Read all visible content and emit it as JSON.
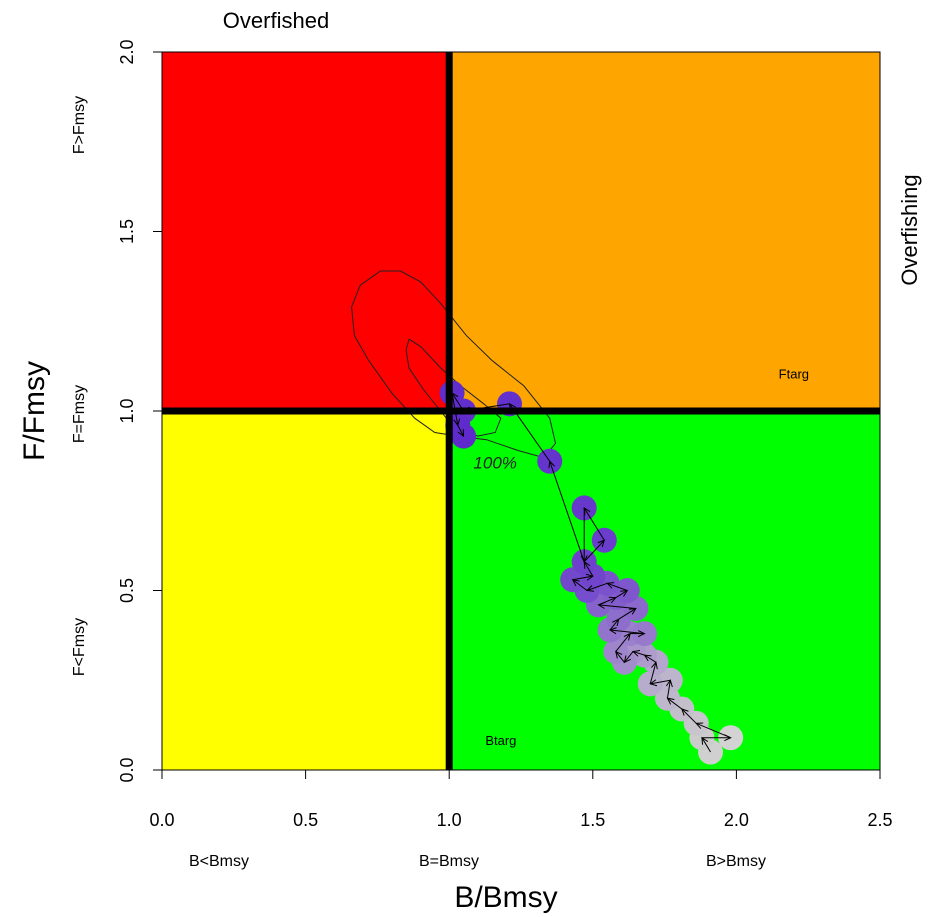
{
  "chart_data": {
    "type": "scatter",
    "title": "",
    "xlabel": "B/Bmsy",
    "ylabel": "F/Fmsy",
    "xlim": [
      0,
      2.5
    ],
    "ylim": [
      0,
      2
    ],
    "x_ticks": [
      "0.0",
      "0.5",
      "1.0",
      "1.5",
      "2.0",
      "2.5"
    ],
    "y_ticks": [
      "0.0",
      "0.5",
      "1.0",
      "1.5",
      "2.0"
    ],
    "grid": false,
    "reference_lines": {
      "x": 1.0,
      "y": 1.0
    },
    "quadrants": [
      {
        "name": "overfished-overfishing",
        "x": [
          0,
          1
        ],
        "y": [
          1,
          2
        ],
        "color": "#ff0000"
      },
      {
        "name": "not-overfished-overfishing",
        "x": [
          1,
          2.5
        ],
        "y": [
          1,
          2
        ],
        "color": "#ffa500"
      },
      {
        "name": "overfished-not-overfishing",
        "x": [
          0,
          1
        ],
        "y": [
          0,
          1
        ],
        "color": "#ffff00"
      },
      {
        "name": "healthy",
        "x": [
          1,
          2.5
        ],
        "y": [
          0,
          1
        ],
        "color": "#00ff00"
      }
    ],
    "margin_labels": {
      "top": "Overfished",
      "right": "Overfishing",
      "x_categories": [
        "B<Bmsy",
        "B=Bmsy",
        "B>Bmsy"
      ],
      "y_categories": [
        "F<Fmsy",
        "F=Fmsy",
        "F>Fmsy"
      ]
    },
    "annotations": [
      {
        "text": "Ftarg",
        "x": 2.2,
        "y": 1.09
      },
      {
        "text": "Btarg",
        "x": 1.18,
        "y": 0.07
      },
      {
        "text": "100%",
        "x": 1.16,
        "y": 0.84
      }
    ],
    "series": [
      {
        "points": [
          {
            "x": 1.91,
            "y": 0.05,
            "color": "#d0d0d0"
          },
          {
            "x": 1.98,
            "y": 0.09,
            "color": "#d3d3d3"
          },
          {
            "x": 1.88,
            "y": 0.09,
            "color": "#cccccc"
          },
          {
            "x": 1.86,
            "y": 0.13,
            "color": "#c8c6cc"
          },
          {
            "x": 1.81,
            "y": 0.17,
            "color": "#c3bfcb"
          },
          {
            "x": 1.76,
            "y": 0.2,
            "color": "#bfb8cc"
          },
          {
            "x": 1.77,
            "y": 0.25,
            "color": "#bdb5cc"
          },
          {
            "x": 1.7,
            "y": 0.24,
            "color": "#b8accc"
          },
          {
            "x": 1.72,
            "y": 0.3,
            "color": "#b4a6cc"
          },
          {
            "x": 1.68,
            "y": 0.32,
            "color": "#ae9ccc"
          },
          {
            "x": 1.64,
            "y": 0.33,
            "color": "#a995cc"
          },
          {
            "x": 1.61,
            "y": 0.3,
            "color": "#a38ccc"
          },
          {
            "x": 1.58,
            "y": 0.33,
            "color": "#9f86cc"
          },
          {
            "x": 1.63,
            "y": 0.38,
            "color": "#9b80cc"
          },
          {
            "x": 1.68,
            "y": 0.38,
            "color": "#977acc"
          },
          {
            "x": 1.56,
            "y": 0.39,
            "color": "#9274cc"
          },
          {
            "x": 1.59,
            "y": 0.42,
            "color": "#8e6ecc"
          },
          {
            "x": 1.65,
            "y": 0.45,
            "color": "#8a68cc"
          },
          {
            "x": 1.52,
            "y": 0.46,
            "color": "#8662cc"
          },
          {
            "x": 1.58,
            "y": 0.48,
            "color": "#825dcc"
          },
          {
            "x": 1.62,
            "y": 0.5,
            "color": "#7e57cc"
          },
          {
            "x": 1.55,
            "y": 0.52,
            "color": "#7a52cc"
          },
          {
            "x": 1.48,
            "y": 0.5,
            "color": "#764dcc"
          },
          {
            "x": 1.43,
            "y": 0.53,
            "color": "#7349cc"
          },
          {
            "x": 1.5,
            "y": 0.54,
            "color": "#7045cc"
          },
          {
            "x": 1.47,
            "y": 0.58,
            "color": "#6d41cc"
          },
          {
            "x": 1.54,
            "y": 0.64,
            "color": "#6a3dcc"
          },
          {
            "x": 1.47,
            "y": 0.73,
            "color": "#6738cc"
          },
          {
            "x": 1.35,
            "y": 0.86,
            "color": "#6534cc"
          },
          {
            "x": 1.21,
            "y": 1.02,
            "color": "#6331cc"
          },
          {
            "x": 1.05,
            "y": 1.0,
            "color": "#622fcc"
          },
          {
            "x": 1.01,
            "y": 1.05,
            "color": "#612dcc"
          },
          {
            "x": 1.03,
            "y": 0.96,
            "color": "#602bcc"
          },
          {
            "x": 1.05,
            "y": 0.93,
            "color": "#5f2acc"
          }
        ]
      }
    ],
    "contours": [
      {
        "label": "100%",
        "points": [
          [
            0.66,
            1.29
          ],
          [
            0.69,
            1.35
          ],
          [
            0.76,
            1.39
          ],
          [
            0.83,
            1.39
          ],
          [
            0.9,
            1.36
          ],
          [
            0.97,
            1.3
          ],
          [
            1.06,
            1.21
          ],
          [
            1.15,
            1.14
          ],
          [
            1.26,
            1.07
          ],
          [
            1.35,
            0.98
          ],
          [
            1.37,
            0.91
          ],
          [
            1.33,
            0.87
          ],
          [
            1.24,
            0.89
          ],
          [
            1.13,
            0.92
          ],
          [
            1.03,
            0.93
          ],
          [
            0.95,
            0.94
          ],
          [
            0.88,
            0.98
          ],
          [
            0.8,
            1.05
          ],
          [
            0.72,
            1.14
          ],
          [
            0.67,
            1.21
          ],
          [
            0.66,
            1.29
          ]
        ]
      },
      {
        "label": "",
        "points": [
          [
            0.86,
            1.2
          ],
          [
            0.9,
            1.18
          ],
          [
            0.97,
            1.12
          ],
          [
            1.04,
            1.07
          ],
          [
            1.12,
            1.02
          ],
          [
            1.18,
            0.98
          ],
          [
            1.16,
            0.94
          ],
          [
            1.1,
            0.93
          ],
          [
            1.02,
            0.95
          ],
          [
            0.97,
            1.0
          ],
          [
            0.91,
            1.06
          ],
          [
            0.86,
            1.12
          ],
          [
            0.85,
            1.17
          ],
          [
            0.86,
            1.2
          ]
        ]
      }
    ],
    "trajectory": [
      [
        1.91,
        0.05
      ],
      [
        1.88,
        0.09
      ],
      [
        1.98,
        0.09
      ],
      [
        1.86,
        0.13
      ],
      [
        1.81,
        0.17
      ],
      [
        1.76,
        0.2
      ],
      [
        1.77,
        0.25
      ],
      [
        1.7,
        0.24
      ],
      [
        1.72,
        0.3
      ],
      [
        1.68,
        0.32
      ],
      [
        1.64,
        0.33
      ],
      [
        1.61,
        0.3
      ],
      [
        1.58,
        0.33
      ],
      [
        1.63,
        0.38
      ],
      [
        1.68,
        0.38
      ],
      [
        1.56,
        0.39
      ],
      [
        1.59,
        0.42
      ],
      [
        1.65,
        0.45
      ],
      [
        1.52,
        0.46
      ],
      [
        1.58,
        0.48
      ],
      [
        1.62,
        0.5
      ],
      [
        1.55,
        0.52
      ],
      [
        1.48,
        0.5
      ],
      [
        1.43,
        0.53
      ],
      [
        1.5,
        0.54
      ],
      [
        1.47,
        0.58
      ],
      [
        1.54,
        0.64
      ],
      [
        1.47,
        0.73
      ],
      [
        1.47,
        0.58
      ],
      [
        1.35,
        0.86
      ],
      [
        1.21,
        1.02
      ],
      [
        1.05,
        1.0
      ],
      [
        1.01,
        1.05
      ],
      [
        1.03,
        0.96
      ],
      [
        1.05,
        0.93
      ]
    ]
  }
}
